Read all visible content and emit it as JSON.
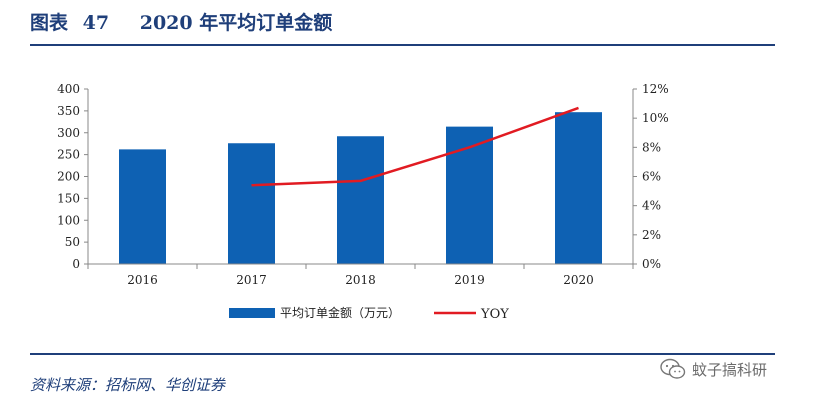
{
  "header": {
    "label": "图表",
    "number": "47",
    "title": "2020 年平均订单金额"
  },
  "footer": {
    "source": "资料来源：招标网、华创证券",
    "watermark": "蚊子搞科研"
  },
  "colors": {
    "bar": "#0e61b3",
    "line": "#e11b22",
    "heading": "#1f3f7a"
  },
  "chart_data": {
    "type": "bar",
    "categories": [
      "2016",
      "2017",
      "2018",
      "2019",
      "2020"
    ],
    "series": [
      {
        "name": "平均订单金额（万元）",
        "type": "bar",
        "axis": "left",
        "values": [
          262,
          276,
          292,
          314,
          347
        ]
      },
      {
        "name": "YOY",
        "type": "line",
        "axis": "right",
        "values": [
          null,
          0.054,
          0.057,
          0.08,
          0.107
        ]
      }
    ],
    "ylim": [
      0,
      400
    ],
    "yticks": [
      0,
      50,
      100,
      150,
      200,
      250,
      300,
      350,
      400
    ],
    "y2lim": [
      0,
      0.12
    ],
    "y2ticks": [
      "0%",
      "2%",
      "4%",
      "6%",
      "8%",
      "10%",
      "12%"
    ],
    "grid": false,
    "legend_position": "bottom"
  }
}
